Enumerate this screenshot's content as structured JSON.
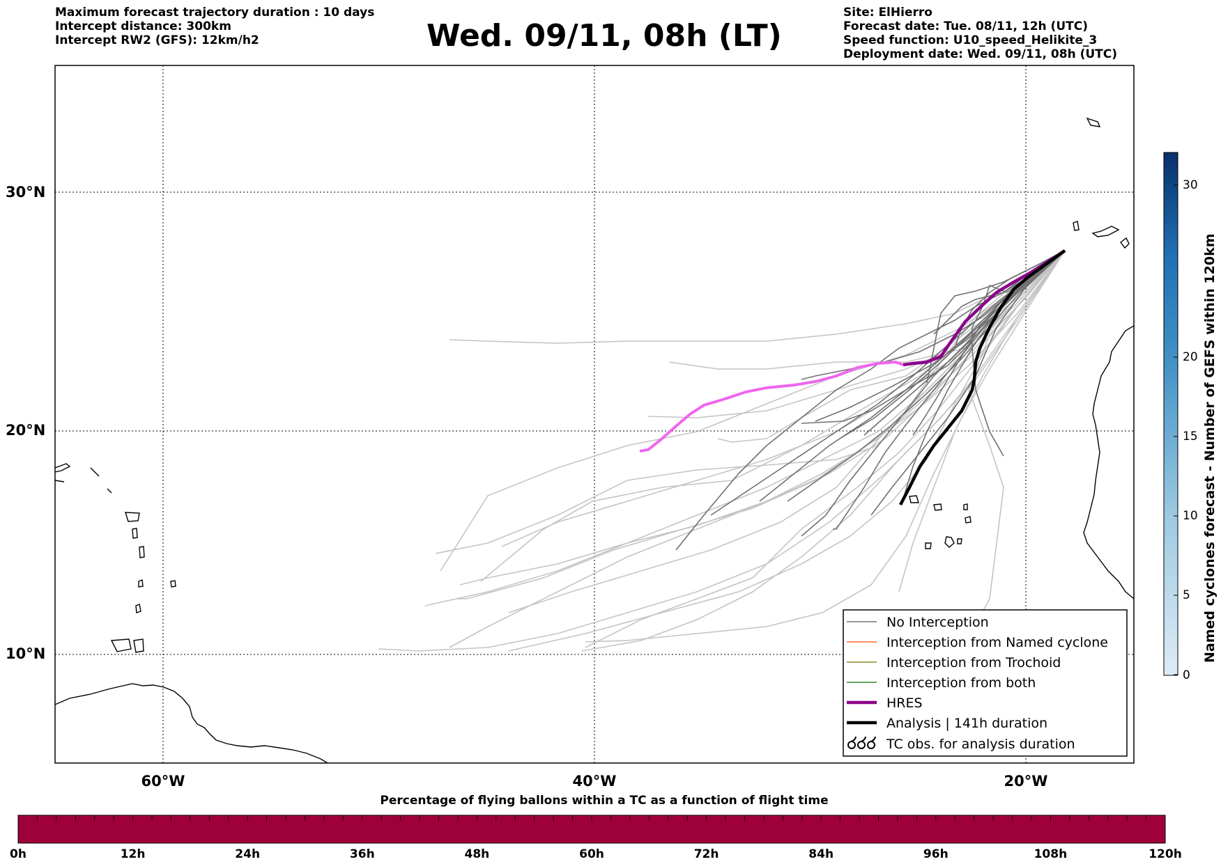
{
  "header": {
    "info_left": [
      "Maximum forecast trajectory duration : 10 days",
      "Intercept distance: 300km",
      "Intercept RW2 (GFS):  12km/h2"
    ],
    "title": "Wed. 09/11, 08h (LT)",
    "info_right": [
      "Site: ElHierro",
      "Forecast date: Tue. 08/11, 12h (UTC)",
      "Speed function: U10_speed_Helikite_3",
      "Deployment date: Wed. 09/11, 08h (UTC)"
    ]
  },
  "map": {
    "lat_labels": [
      "30°N",
      "20°N",
      "10°N"
    ],
    "lon_labels": [
      "60°W",
      "40°W",
      "20°W"
    ],
    "lon_range": [
      -65,
      -15
    ],
    "lat_range": [
      5,
      34.3
    ],
    "grid_lons": [
      -60,
      -40,
      -20
    ],
    "grid_lats": [
      10,
      20,
      30
    ],
    "colors": {
      "no_interception_dark": "#707070",
      "no_interception_light": "#c4c4c4",
      "named_cyclone": "#ff6a33",
      "trochoid": "#8a8a2a",
      "both": "#2a8a2a",
      "hres_main": "#8b008b",
      "hres_light": "#ee66ee",
      "analysis": "#000000"
    }
  },
  "legend": {
    "items": [
      {
        "label": "No Interception",
        "style": "thin-gray"
      },
      {
        "label": "Interception from Named cyclone",
        "style": "thin-orange"
      },
      {
        "label": "Interception from Trochoid",
        "style": "thin-olive"
      },
      {
        "label": "Interception from both",
        "style": "thin-green"
      },
      {
        "label": "HRES",
        "style": "thick-purple"
      },
      {
        "label": "Analysis | 141h duration",
        "style": "thick-black"
      },
      {
        "label": "TC obs. for analysis duration",
        "style": "cyclone-symbols"
      }
    ]
  },
  "colorbar": {
    "title": "Named cyclones forecast - Number of GEFS within 120km",
    "ticks": [
      "0",
      "5",
      "10",
      "15",
      "20",
      "30"
    ],
    "range": [
      0,
      33
    ]
  },
  "bottom_strip": {
    "caption": "Percentage of flying ballons within a TC as a function of flight time",
    "hour_labels": [
      "0h",
      "12h",
      "24h",
      "36h",
      "48h",
      "60h",
      "72h",
      "84h",
      "96h",
      "108h",
      "120h"
    ],
    "fill_color": "#9e0039"
  }
}
